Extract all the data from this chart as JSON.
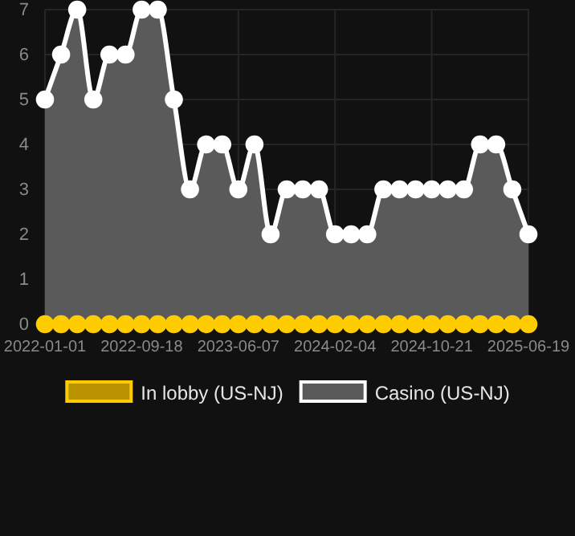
{
  "chart_data": {
    "type": "area",
    "categories": [
      "2022-01-01",
      null,
      null,
      null,
      null,
      null,
      "2022-09-18",
      null,
      null,
      null,
      null,
      null,
      "2023-06-07",
      null,
      null,
      null,
      null,
      null,
      "2024-02-04",
      null,
      null,
      null,
      null,
      null,
      "2024-10-21",
      null,
      null,
      null,
      null,
      null,
      "2025-06-19"
    ],
    "series": [
      {
        "name": "In lobby (US-NJ)",
        "type": "line",
        "color": "#ffcc00",
        "values": [
          0,
          0,
          0,
          0,
          0,
          0,
          0,
          0,
          0,
          0,
          0,
          0,
          0,
          0,
          0,
          0,
          0,
          0,
          0,
          0,
          0,
          0,
          0,
          0,
          0,
          0,
          0,
          0,
          0,
          0,
          0
        ]
      },
      {
        "name": "Casino (US-NJ)",
        "color": "#ffffff",
        "values": [
          5,
          6,
          7,
          5,
          6,
          6,
          7,
          7,
          5,
          3,
          4,
          4,
          3,
          4,
          2,
          3,
          3,
          3,
          2,
          2,
          2,
          3,
          3,
          3,
          3,
          3,
          3,
          4,
          4,
          3,
          2
        ]
      }
    ],
    "ylim": [
      0,
      7
    ],
    "yticks": [
      0,
      1,
      2,
      3,
      4,
      5,
      6,
      7
    ],
    "grid": true,
    "legend": "bottom",
    "marker": "circle"
  }
}
